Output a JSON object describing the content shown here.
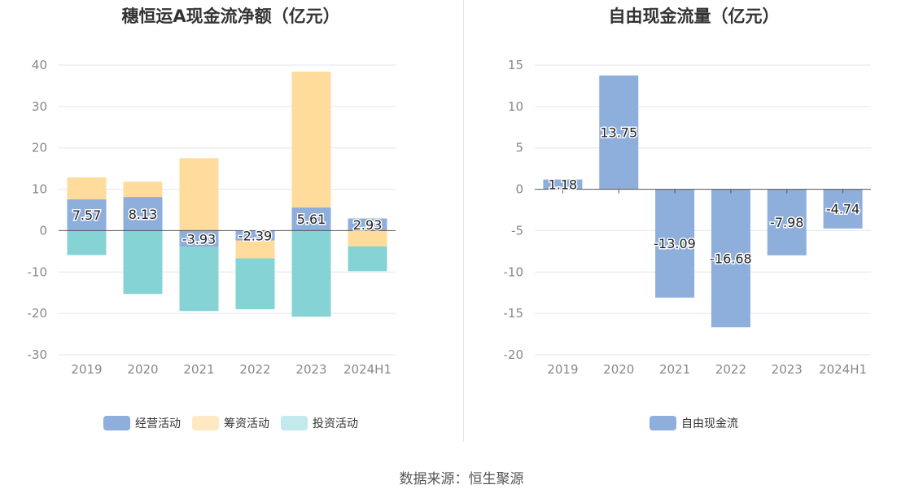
{
  "source_label": "数据来源：恒生聚源",
  "colors": {
    "operating": "#8eaedb",
    "financing": "#ffdb9c",
    "investing": "#86d3d6",
    "fcf": "#8eaedb",
    "legend_financing": "#ffe9c4",
    "legend_investing": "#c2e9eb"
  },
  "chart_data": [
    {
      "type": "bar",
      "title": "穗恒运A现金流净额（亿元）",
      "categories": [
        "2019",
        "2020",
        "2021",
        "2022",
        "2023",
        "2024H1"
      ],
      "ylim": [
        -30,
        40
      ],
      "yticks": [
        40,
        30,
        20,
        10,
        0,
        -10,
        -20,
        -30
      ],
      "stacked": true,
      "grid": true,
      "legend_position": "bottom",
      "series": [
        {
          "name": "经营活动",
          "values": [
            7.57,
            8.13,
            -3.93,
            -2.39,
            5.61,
            2.93
          ]
        },
        {
          "name": "筹资活动",
          "values": [
            5.3,
            3.7,
            17.5,
            -4.3,
            32.8,
            -3.8
          ]
        },
        {
          "name": "投资活动",
          "values": [
            -5.9,
            -15.3,
            -15.5,
            -12.3,
            -20.8,
            -6.0
          ]
        }
      ],
      "data_labels": [
        "7.57",
        "8.13",
        "-3.93",
        "-2.39",
        "5.61",
        "2.93"
      ]
    },
    {
      "type": "bar",
      "title": "自由现金流量（亿元）",
      "categories": [
        "2019",
        "2020",
        "2021",
        "2022",
        "2023",
        "2024H1"
      ],
      "ylim": [
        -20,
        15
      ],
      "yticks": [
        15,
        10,
        5,
        0,
        -5,
        -10,
        -15,
        -20
      ],
      "grid": true,
      "legend_position": "bottom",
      "series": [
        {
          "name": "自由现金流",
          "values": [
            1.18,
            13.75,
            -13.09,
            -16.68,
            -7.98,
            -4.74
          ]
        }
      ],
      "data_labels": [
        "1.18",
        "13.75",
        "-13.09",
        "-16.68",
        "-7.98",
        "-4.74"
      ]
    }
  ]
}
